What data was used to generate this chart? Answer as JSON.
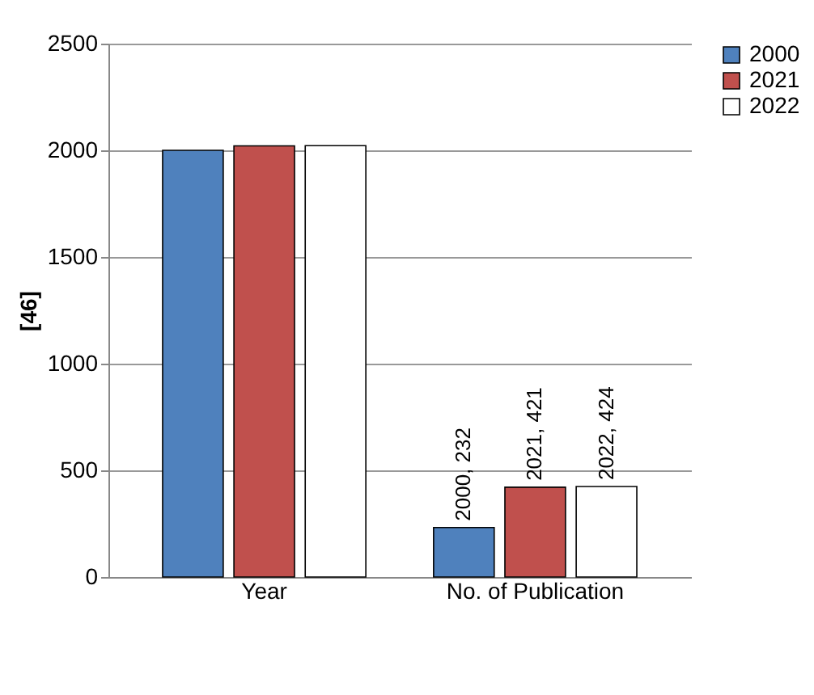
{
  "chart_data": {
    "type": "bar",
    "ylabel": "[46]",
    "categories": [
      "Year",
      "No. of Publication"
    ],
    "series": [
      {
        "name": "2000",
        "color": "#4f81bd",
        "values": [
          2000,
          232
        ],
        "value_labels": [
          null,
          "2000, 232"
        ]
      },
      {
        "name": "2021",
        "color": "#c0504d",
        "values": [
          2021,
          421
        ],
        "value_labels": [
          null,
          "2021, 421"
        ]
      },
      {
        "name": "2022",
        "color": "#ffffff",
        "values": [
          2022,
          424
        ],
        "value_labels": [
          null,
          "2022, 424"
        ]
      }
    ],
    "ylim": [
      0,
      2500
    ],
    "yticks": [
      0,
      500,
      1000,
      1500,
      2000,
      2500
    ],
    "grid": "y",
    "legend": "right"
  }
}
